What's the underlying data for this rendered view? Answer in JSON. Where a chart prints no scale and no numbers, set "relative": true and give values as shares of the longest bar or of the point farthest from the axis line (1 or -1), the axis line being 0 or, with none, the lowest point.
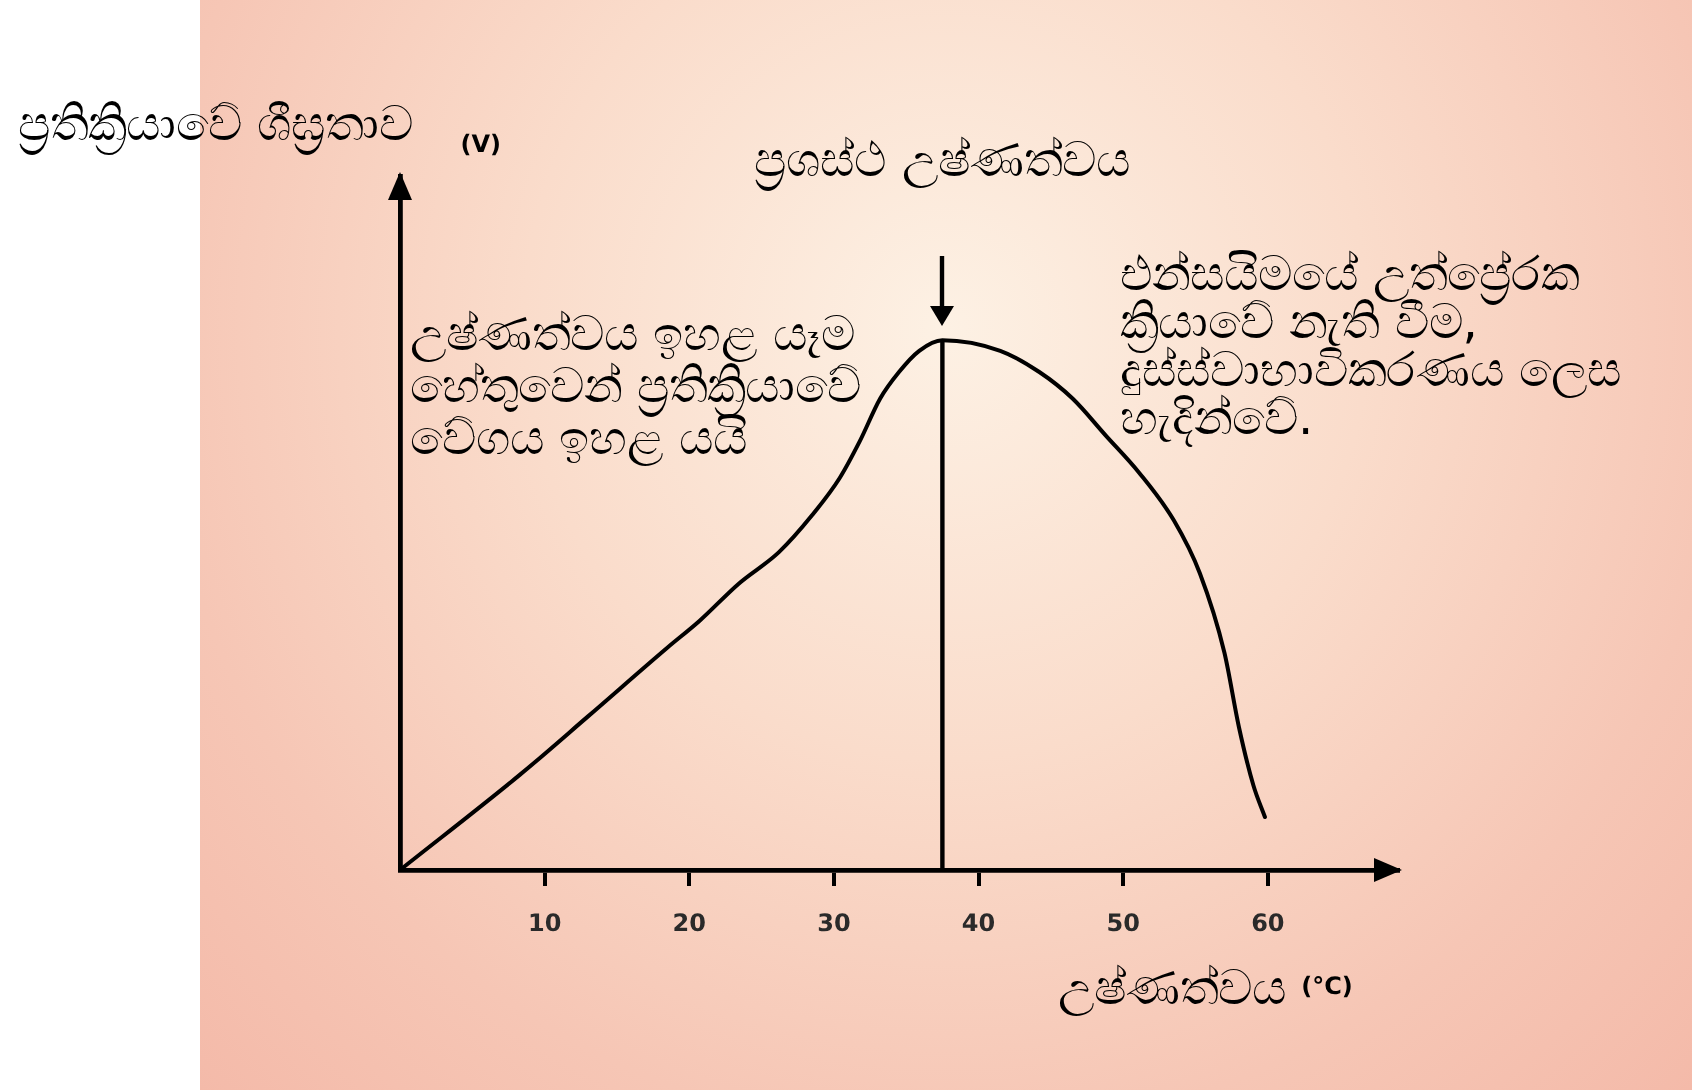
{
  "chart_data": {
    "type": "line",
    "relative": true,
    "xlabel": "උෂ්ණත්වය $^{(°C)}$",
    "ylabel": "ප්‍රතික්‍රියාවේ ශීඝ්‍රතාව $_{(V)}$",
    "x": [
      0,
      8.3,
      13,
      18.5,
      20.7,
      23.4,
      26.2,
      28.5,
      30.4,
      31.8,
      33.2,
      34.5,
      35.9,
      37.5,
      41.5,
      44.2,
      46.5,
      48.8,
      51.1,
      53.5,
      55.3,
      57.0,
      58.0,
      59.0,
      59.8
    ],
    "values": [
      0,
      0.18,
      0.29,
      0.42,
      0.47,
      0.54,
      0.6,
      0.67,
      0.74,
      0.81,
      0.89,
      0.94,
      0.98,
      1,
      0.98,
      0.94,
      0.89,
      0.82,
      0.75,
      0.66,
      0.56,
      0.41,
      0.27,
      0.16,
      0.1
    ],
    "color": "#000000",
    "xlim": [
      0,
      69
    ],
    "xticks": [
      10,
      20,
      30,
      40,
      50,
      60
    ],
    "ref_lines": [
      {
        "axis": "x",
        "value": 37.5,
        "label": "ප්‍රශස්ථ උෂ්ණත්වය",
        "color": "#000000"
      }
    ],
    "annotations": [
      "උෂ්ණත්වය ඉහළ යෑම හේතුවෙන් ප්‍රතික්‍රියාවේ වේගය ඉහළ යයි",
      "එන්සයිමයේ උත්ප්‍රේරක ක්‍රියාවේ නැති වීම, දුස්ස්වාභාවිකරණය ලෙස හැදින්වේ."
    ]
  }
}
